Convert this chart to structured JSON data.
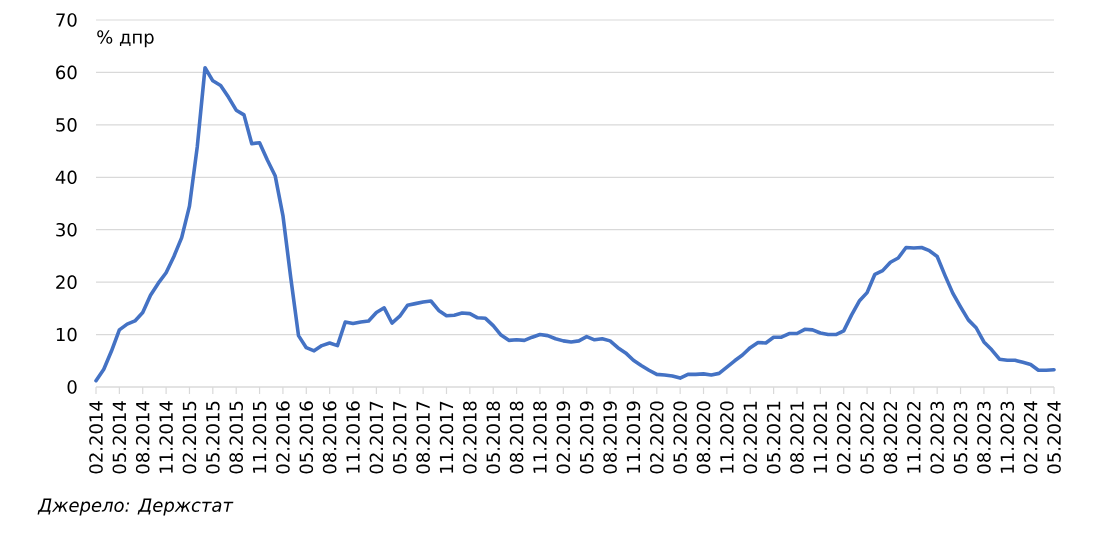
{
  "chart_data": {
    "type": "line",
    "ylabel": "% дпр",
    "annotations": [
      "Джерело: Держстат"
    ],
    "categories": [
      "02.2014",
      null,
      null,
      "05.2014",
      null,
      null,
      "08.2014",
      null,
      null,
      "11.2014",
      null,
      null,
      "02.2015",
      null,
      null,
      "05.2015",
      null,
      null,
      "08.2015",
      null,
      null,
      "11.2015",
      null,
      null,
      "02.2016",
      null,
      null,
      "05.2016",
      null,
      null,
      "08.2016",
      null,
      null,
      "11.2016",
      null,
      null,
      "02.2017",
      null,
      null,
      "05.2017",
      null,
      null,
      "08.2017",
      null,
      null,
      "11.2017",
      null,
      null,
      "02.2018",
      null,
      null,
      "05.2018",
      null,
      null,
      "08.2018",
      null,
      null,
      "11.2018",
      null,
      null,
      "02.2019",
      null,
      null,
      "05.2019",
      null,
      null,
      "08.2019",
      null,
      null,
      "11.2019",
      null,
      null,
      "02.2020",
      null,
      null,
      "05.2020",
      null,
      null,
      "08.2020",
      null,
      null,
      "11.2020",
      null,
      null,
      "02.2021",
      null,
      null,
      "05.2021",
      null,
      null,
      "08.2021",
      null,
      null,
      "11.2021",
      null,
      null,
      "02.2022",
      null,
      null,
      "05.2022",
      null,
      null,
      "08.2022",
      null,
      null,
      "11.2022",
      null,
      null,
      "02.2023",
      null,
      null,
      "05.2023",
      null,
      null,
      "08.2023",
      null,
      null,
      "11.2023",
      null,
      null,
      "02.2024",
      null,
      null,
      "05.2024"
    ],
    "values": [
      1.2,
      3.4,
      6.9,
      10.9,
      12.0,
      12.6,
      14.2,
      17.5,
      19.8,
      21.8,
      24.9,
      28.5,
      34.5,
      45.8,
      60.9,
      58.4,
      57.5,
      55.3,
      52.8,
      51.9,
      46.4,
      46.6,
      43.3,
      40.3,
      32.7,
      20.9,
      9.8,
      7.5,
      6.9,
      7.9,
      8.4,
      7.9,
      12.4,
      12.1,
      12.4,
      12.6,
      14.2,
      15.1,
      12.2,
      13.5,
      15.6,
      15.9,
      16.2,
      16.4,
      14.6,
      13.6,
      13.7,
      14.1,
      14.0,
      13.2,
      13.1,
      11.7,
      9.9,
      8.9,
      9.0,
      8.9,
      9.5,
      10.0,
      9.8,
      9.2,
      8.8,
      8.6,
      8.8,
      9.6,
      9.0,
      9.2,
      8.8,
      7.5,
      6.5,
      5.1,
      4.1,
      3.2,
      2.4,
      2.3,
      2.1,
      1.7,
      2.4,
      2.4,
      2.5,
      2.3,
      2.6,
      3.8,
      5.0,
      6.1,
      7.5,
      8.5,
      8.4,
      9.5,
      9.5,
      10.2,
      10.2,
      11.0,
      10.9,
      10.3,
      10.0,
      10.0,
      10.7,
      13.7,
      16.4,
      18.0,
      21.5,
      22.2,
      23.8,
      24.6,
      26.6,
      26.5,
      26.6,
      26.0,
      24.9,
      21.3,
      17.9,
      15.3,
      12.8,
      11.3,
      8.6,
      7.1,
      5.3,
      5.1,
      5.1,
      4.7,
      4.3,
      3.2,
      3.2,
      3.3
    ],
    "color": "#4472c4",
    "ylim": [
      0,
      70
    ],
    "yticks": [
      0,
      10,
      20,
      30,
      40,
      50,
      60,
      70
    ],
    "grid": "y"
  }
}
